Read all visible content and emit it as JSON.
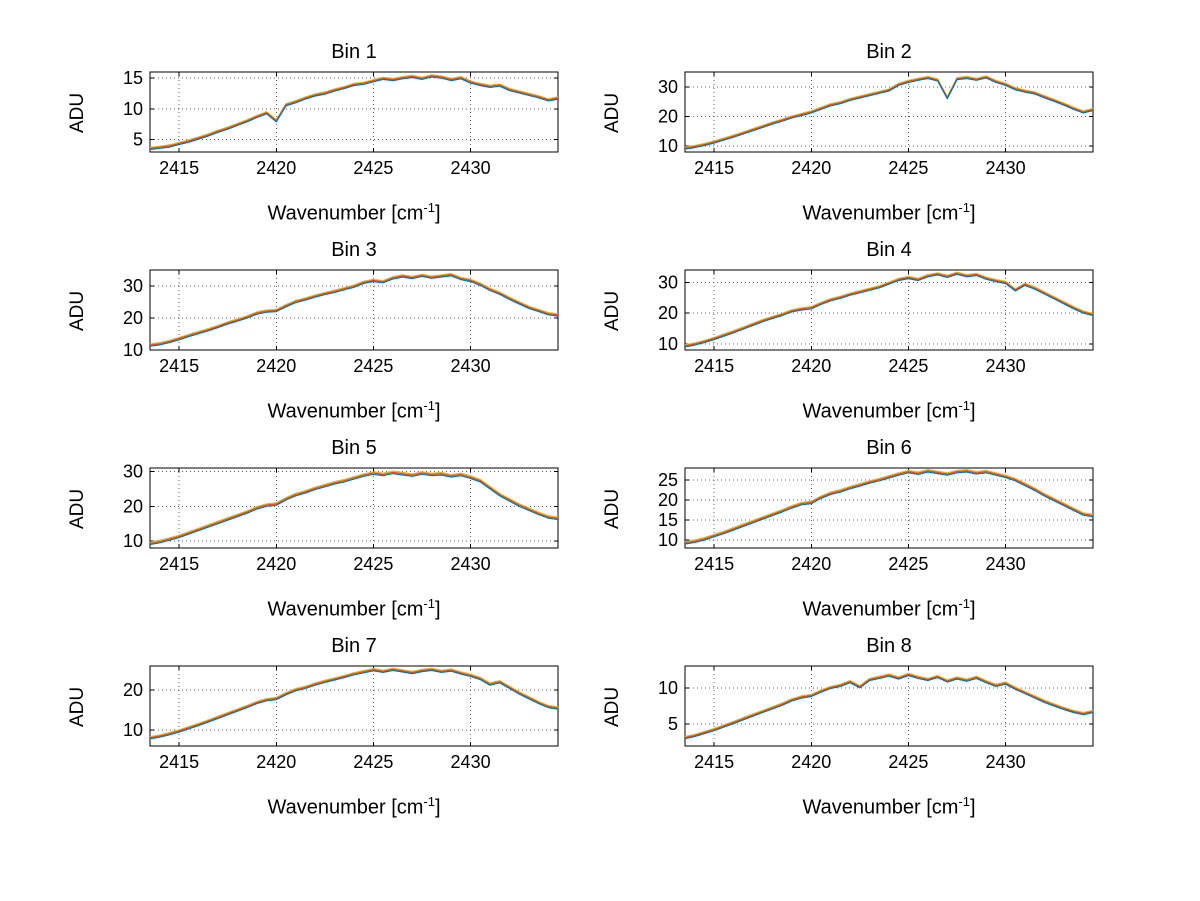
{
  "figure": {
    "background_color": "#ffffff"
  },
  "chart_data": {
    "type": "line",
    "layout": {
      "rows": 4,
      "cols": 2,
      "grid": "dotted",
      "legend": "none",
      "box": "on"
    },
    "ylabel": "ADU",
    "xlabel": {
      "pre": "Wavenumber [cm",
      "sup": "-1",
      "post": "]"
    },
    "x": [
      2413.5,
      2414.0,
      2414.5,
      2415.0,
      2415.5,
      2416.0,
      2416.5,
      2417.0,
      2417.5,
      2418.0,
      2418.5,
      2419.0,
      2419.5,
      2420.0,
      2420.5,
      2421.0,
      2421.5,
      2422.0,
      2422.5,
      2423.0,
      2423.5,
      2424.0,
      2424.5,
      2425.0,
      2425.5,
      2426.0,
      2426.5,
      2427.0,
      2427.5,
      2428.0,
      2428.5,
      2429.0,
      2429.5,
      2430.0,
      2430.5,
      2431.0,
      2431.5,
      2432.0,
      2432.5,
      2433.0,
      2433.5,
      2434.0,
      2434.5
    ],
    "xlim": [
      2413.5,
      2434.5
    ],
    "xticks": [
      2415,
      2420,
      2425,
      2430
    ],
    "grid_color": "#606060",
    "series": [
      {
        "name": "trace-blue",
        "color": "#0072BD"
      },
      {
        "name": "trace-orange",
        "color": "#D95319"
      },
      {
        "name": "trace-yellow",
        "color": "#EDB120"
      }
    ],
    "series_note": "trace-orange and trace-yellow run parallel to trace-blue, shifted upward by each bin's offsets[1] and offsets[2] (ADU)",
    "bins": [
      {
        "title": "Bin 1",
        "ylim": [
          3,
          16
        ],
        "yticks": [
          5,
          10,
          15
        ],
        "offsets": [
          0,
          0.18,
          0.35
        ],
        "values": [
          3.4,
          3.6,
          3.8,
          4.2,
          4.6,
          5.1,
          5.6,
          6.2,
          6.7,
          7.3,
          7.9,
          8.6,
          9.2,
          7.9,
          10.5,
          11.0,
          11.6,
          12.1,
          12.4,
          12.9,
          13.3,
          13.8,
          14.0,
          14.4,
          14.8,
          14.6,
          14.9,
          15.1,
          14.8,
          15.2,
          15.0,
          14.6,
          14.9,
          14.2,
          13.8,
          13.5,
          13.7,
          13.0,
          12.6,
          12.2,
          11.8,
          11.3,
          11.6
        ]
      },
      {
        "title": "Bin 2",
        "ylim": [
          8,
          35
        ],
        "yticks": [
          10,
          20,
          30
        ],
        "offsets": [
          0,
          0.35,
          0.7
        ],
        "values": [
          9.0,
          9.5,
          10.2,
          11.0,
          12.0,
          13.0,
          14.1,
          15.2,
          16.3,
          17.4,
          18.4,
          19.5,
          20.3,
          21.2,
          22.4,
          23.6,
          24.3,
          25.4,
          26.2,
          27.0,
          27.8,
          28.6,
          30.5,
          31.5,
          32.2,
          32.8,
          32.0,
          26.0,
          32.4,
          32.8,
          32.2,
          33.0,
          31.5,
          30.5,
          29.0,
          28.2,
          27.6,
          26.3,
          25.1,
          23.8,
          22.4,
          21.2,
          22.0
        ]
      },
      {
        "title": "Bin 3",
        "ylim": [
          10,
          35
        ],
        "yticks": [
          10,
          20,
          30
        ],
        "offsets": [
          0,
          0.35,
          0.7
        ],
        "values": [
          11.2,
          11.6,
          12.3,
          13.2,
          14.2,
          15.1,
          16.0,
          17.0,
          18.1,
          19.0,
          20.0,
          21.2,
          21.8,
          22.0,
          23.5,
          24.8,
          25.6,
          26.5,
          27.3,
          28.0,
          28.8,
          29.6,
          30.8,
          31.4,
          31.0,
          32.2,
          32.8,
          32.3,
          33.0,
          32.4,
          32.8,
          33.2,
          32.0,
          31.4,
          30.2,
          28.6,
          27.4,
          25.8,
          24.4,
          23.0,
          22.0,
          21.0,
          20.6
        ]
      },
      {
        "title": "Bin 4",
        "ylim": [
          8,
          34
        ],
        "yticks": [
          10,
          20,
          30
        ],
        "offsets": [
          0,
          0.35,
          0.7
        ],
        "values": [
          9.0,
          9.6,
          10.4,
          11.4,
          12.5,
          13.6,
          14.8,
          16.0,
          17.2,
          18.2,
          19.2,
          20.4,
          21.0,
          21.4,
          22.8,
          24.0,
          24.8,
          25.8,
          26.6,
          27.4,
          28.2,
          29.4,
          30.6,
          31.2,
          30.6,
          31.8,
          32.4,
          31.6,
          32.6,
          31.8,
          32.2,
          31.0,
          30.2,
          29.6,
          27.2,
          29.0,
          27.8,
          26.2,
          24.6,
          23.0,
          21.4,
          20.0,
          19.2
        ]
      },
      {
        "title": "Bin 5",
        "ylim": [
          8,
          31
        ],
        "yticks": [
          10,
          20,
          30
        ],
        "offsets": [
          0,
          0.35,
          0.7
        ],
        "values": [
          9.0,
          9.5,
          10.2,
          11.0,
          12.0,
          13.0,
          14.0,
          15.0,
          16.0,
          17.0,
          18.0,
          19.2,
          20.0,
          20.3,
          21.8,
          23.0,
          23.8,
          24.8,
          25.6,
          26.4,
          27.0,
          27.8,
          28.6,
          29.2,
          28.8,
          29.4,
          29.0,
          28.6,
          29.2,
          28.8,
          29.0,
          28.4,
          28.8,
          28.0,
          27.0,
          25.0,
          23.0,
          21.5,
          20.0,
          18.8,
          17.6,
          16.6,
          16.2
        ]
      },
      {
        "title": "Bin 6",
        "ylim": [
          8,
          28
        ],
        "yticks": [
          10,
          15,
          20,
          25
        ],
        "offsets": [
          0,
          0.3,
          0.6
        ],
        "values": [
          9.0,
          9.4,
          10.0,
          10.8,
          11.6,
          12.5,
          13.4,
          14.3,
          15.2,
          16.1,
          17.0,
          18.0,
          18.8,
          19.1,
          20.4,
          21.4,
          22.0,
          22.8,
          23.5,
          24.2,
          24.8,
          25.5,
          26.2,
          26.8,
          26.4,
          27.0,
          26.6,
          26.2,
          26.8,
          27.0,
          26.5,
          26.8,
          26.2,
          25.6,
          24.8,
          23.6,
          22.4,
          21.0,
          19.8,
          18.6,
          17.4,
          16.2,
          15.8
        ]
      },
      {
        "title": "Bin 7",
        "ylim": [
          6,
          26
        ],
        "yticks": [
          10,
          20
        ],
        "offsets": [
          0,
          0.28,
          0.55
        ],
        "values": [
          7.8,
          8.2,
          8.8,
          9.5,
          10.3,
          11.1,
          12.0,
          12.9,
          13.8,
          14.7,
          15.6,
          16.6,
          17.3,
          17.6,
          18.8,
          19.8,
          20.4,
          21.2,
          21.9,
          22.5,
          23.1,
          23.8,
          24.3,
          24.8,
          24.4,
          24.9,
          24.5,
          24.1,
          24.6,
          24.9,
          24.4,
          24.7,
          24.0,
          23.4,
          22.6,
          21.2,
          21.8,
          20.4,
          19.0,
          17.8,
          16.6,
          15.6,
          15.2
        ]
      },
      {
        "title": "Bin 8",
        "ylim": [
          2,
          13
        ],
        "yticks": [
          5,
          10
        ],
        "offsets": [
          0,
          0.15,
          0.3
        ],
        "values": [
          3.0,
          3.3,
          3.7,
          4.1,
          4.6,
          5.1,
          5.6,
          6.1,
          6.6,
          7.1,
          7.6,
          8.2,
          8.6,
          8.8,
          9.4,
          9.9,
          10.2,
          10.7,
          10.0,
          11.0,
          11.3,
          11.6,
          11.2,
          11.7,
          11.3,
          11.0,
          11.4,
          10.8,
          11.2,
          10.9,
          11.3,
          10.7,
          10.2,
          10.5,
          9.8,
          9.2,
          8.6,
          8.0,
          7.5,
          7.0,
          6.6,
          6.3,
          6.6
        ]
      }
    ]
  }
}
